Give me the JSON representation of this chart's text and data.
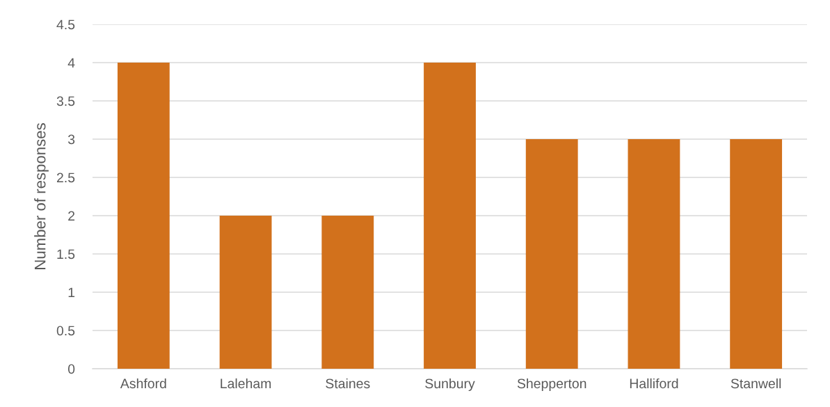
{
  "chart_data": {
    "type": "bar",
    "ylabel": "Number of responses",
    "categories": [
      "Ashford",
      "Laleham",
      "Staines",
      "Sunbury",
      "Shepperton",
      "Halliford",
      "Stanwell"
    ],
    "values": [
      4,
      2,
      2,
      4,
      3,
      3,
      3
    ],
    "color": "#d2711c",
    "ylim": [
      0,
      4.5
    ],
    "yticks": [
      0,
      {
        "value": 0.5,
        "label": "0.5"
      },
      1,
      {
        "value": 1.5,
        "label": "1.5"
      },
      2,
      {
        "value": 2.5,
        "label": "2.5"
      },
      3,
      {
        "value": 3.5,
        "label": "3.5"
      },
      4,
      {
        "value": 4.5,
        "label": "4.5"
      }
    ],
    "grid": "y",
    "legend": false
  }
}
